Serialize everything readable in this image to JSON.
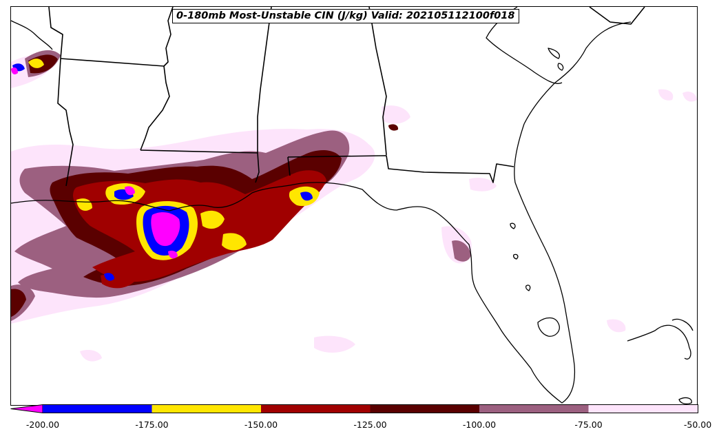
{
  "title": "0-180mb Most-Unstable CIN (J/kg) Valid: 202105112100f018",
  "colorbar": {
    "extend": "min",
    "extend_color": "#ff00ff",
    "bins": [
      {
        "from": -200,
        "to": -175,
        "color": "#0000ff"
      },
      {
        "from": -175,
        "to": -150,
        "color": "#ffe600"
      },
      {
        "from": -150,
        "to": -125,
        "color": "#a00000"
      },
      {
        "from": -125,
        "to": -100,
        "color": "#5a0000"
      },
      {
        "from": -100,
        "to": -75,
        "color": "#9c6080"
      },
      {
        "from": -75,
        "to": -50,
        "color": "#fde4fb"
      }
    ],
    "tick_labels": [
      "-200.00",
      "-175.00",
      "-150.00",
      "-125.00",
      "-100.00",
      "-75.00",
      "-50.00"
    ]
  },
  "colors": {
    "boundary": "#000000",
    "background": "#ffffff",
    "magenta": "#ff00ff",
    "blue": "#0000ff",
    "yellow": "#ffe600",
    "red": "#a00000",
    "dark_red": "#5a0000",
    "mauve": "#9c6080",
    "pink": "#fde4fb"
  }
}
